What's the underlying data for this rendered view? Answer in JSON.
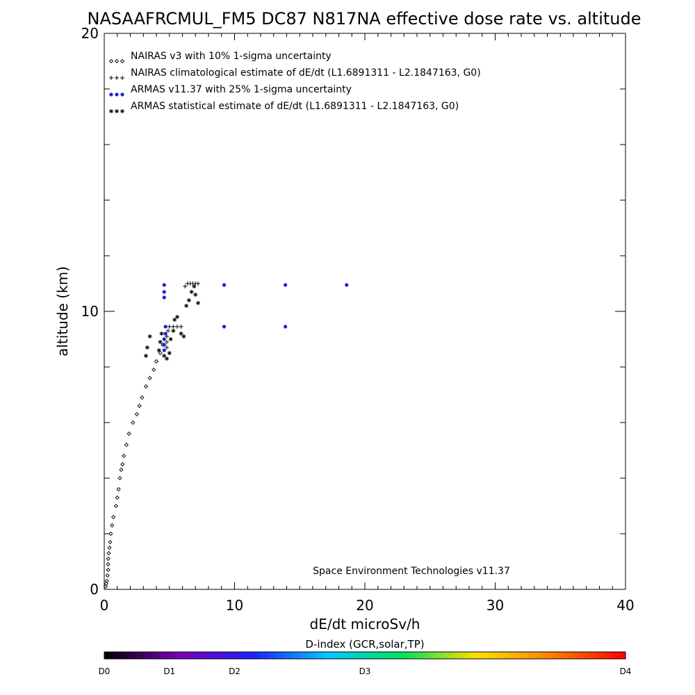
{
  "chart_data": {
    "type": "scatter",
    "title": "NASAAFRCMUL_FM5 DC87 N817NA effective dose rate vs. altitude",
    "xlabel": "dE/dt microSv/h",
    "ylabel": "altitude (km)",
    "xlim": [
      0,
      40
    ],
    "ylim": [
      0,
      20
    ],
    "x_major_ticks": [
      0,
      10,
      20,
      30,
      40
    ],
    "x_tick_labels": [
      "0",
      "10",
      "20",
      "30",
      "40"
    ],
    "y_major_ticks": [
      0,
      10,
      20
    ],
    "y_tick_labels": [
      "0",
      "10",
      "20"
    ],
    "legend_position": "top-left",
    "credit": "Space Environment Technologies v11.37",
    "series": [
      {
        "name": "NAIRAS v3 with 10% 1-sigma uncertainty",
        "marker": "diamond",
        "color": "#000000",
        "points": [
          [
            0.1,
            0.1
          ],
          [
            0.15,
            0.2
          ],
          [
            0.2,
            0.3
          ],
          [
            0.25,
            0.5
          ],
          [
            0.3,
            0.7
          ],
          [
            0.3,
            0.9
          ],
          [
            0.3,
            1.1
          ],
          [
            0.35,
            1.3
          ],
          [
            0.4,
            1.5
          ],
          [
            0.45,
            1.7
          ],
          [
            0.5,
            2.0
          ],
          [
            0.6,
            2.3
          ],
          [
            0.7,
            2.6
          ],
          [
            0.9,
            3.0
          ],
          [
            1.0,
            3.3
          ],
          [
            1.1,
            3.6
          ],
          [
            1.2,
            4.0
          ],
          [
            1.3,
            4.3
          ],
          [
            1.4,
            4.5
          ],
          [
            1.5,
            4.8
          ],
          [
            1.7,
            5.2
          ],
          [
            1.9,
            5.6
          ],
          [
            2.2,
            6.0
          ],
          [
            2.5,
            6.3
          ],
          [
            2.7,
            6.6
          ],
          [
            2.9,
            6.9
          ],
          [
            3.2,
            7.3
          ],
          [
            3.5,
            7.6
          ],
          [
            3.8,
            7.9
          ],
          [
            4.0,
            8.2
          ],
          [
            4.3,
            8.5
          ],
          [
            4.5,
            8.8
          ]
        ]
      },
      {
        "name": "NAIRAS climatological estimate of dE/dt (L1.6891311 - L2.1847163, G0)",
        "marker": "plus",
        "color": "#000000",
        "points": [
          [
            4.8,
            8.7
          ],
          [
            4.8,
            8.9
          ],
          [
            4.8,
            9.1
          ],
          [
            4.9,
            9.3
          ],
          [
            5.0,
            9.45
          ],
          [
            5.3,
            9.45
          ],
          [
            5.6,
            9.45
          ],
          [
            5.9,
            9.45
          ],
          [
            6.2,
            10.9
          ],
          [
            6.4,
            11.0
          ],
          [
            6.6,
            11.0
          ],
          [
            6.8,
            11.0
          ],
          [
            7.0,
            11.0
          ],
          [
            7.2,
            11.0
          ]
        ]
      },
      {
        "name": "ARMAS v11.37 with 25% 1-sigma uncertainty",
        "marker": "dot",
        "color": "#1c20d8",
        "points": [
          [
            4.6,
            8.6
          ],
          [
            4.6,
            8.8
          ],
          [
            4.6,
            9.0
          ],
          [
            4.7,
            9.2
          ],
          [
            4.7,
            9.45
          ],
          [
            4.6,
            10.5
          ],
          [
            4.6,
            10.7
          ],
          [
            4.6,
            10.95
          ],
          [
            9.2,
            9.45
          ],
          [
            9.2,
            10.95
          ],
          [
            13.9,
            9.45
          ],
          [
            13.9,
            10.95
          ],
          [
            18.6,
            10.95
          ]
        ]
      },
      {
        "name": "ARMAS statistical estimate of dE/dt (L1.6891311 - L2.1847163, G0)",
        "marker": "asterisk",
        "color": "#000000",
        "points": [
          [
            3.2,
            8.4
          ],
          [
            3.3,
            8.7
          ],
          [
            3.5,
            9.1
          ],
          [
            4.2,
            8.6
          ],
          [
            4.3,
            8.9
          ],
          [
            4.4,
            9.2
          ],
          [
            4.6,
            8.4
          ],
          [
            4.8,
            8.3
          ],
          [
            5.0,
            8.5
          ],
          [
            5.1,
            9.0
          ],
          [
            5.3,
            9.3
          ],
          [
            5.4,
            9.7
          ],
          [
            5.6,
            9.8
          ],
          [
            5.9,
            9.2
          ],
          [
            6.1,
            9.1
          ],
          [
            6.3,
            10.2
          ],
          [
            6.5,
            10.4
          ],
          [
            6.7,
            10.7
          ],
          [
            6.9,
            10.9
          ],
          [
            7.0,
            10.6
          ],
          [
            7.2,
            10.3
          ]
        ]
      }
    ],
    "colorbar": {
      "label": "D-index (GCR,solar,TP)",
      "ticks": [
        "D0",
        "D1",
        "D2",
        "D3",
        "D4"
      ],
      "tick_fractions": [
        0.0,
        0.125,
        0.25,
        0.5,
        1.0
      ],
      "colors": [
        "#000000",
        "#7a00b5",
        "#2020ff",
        "#00c8ff",
        "#00e060",
        "#ffe000",
        "#ff8000",
        "#ff0000"
      ]
    }
  }
}
